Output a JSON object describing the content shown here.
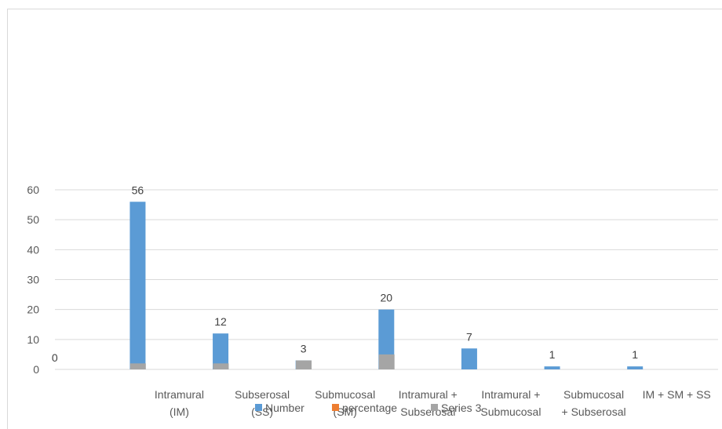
{
  "chart_data": {
    "type": "bar",
    "categories": [
      "",
      "Intramural (IM)",
      "Subserosal (SS)",
      "Submucosal (SM)",
      "Intramural + Subserosal",
      "Intramural + Submucosal",
      "Submucosal + Subserosal",
      "IM + SM + SS"
    ],
    "category_lines": [
      [],
      [
        "Intramural",
        "(IM)"
      ],
      [
        "Subserosal",
        "(SS)"
      ],
      [
        "Submucosal",
        "(SM)"
      ],
      [
        "Intramural +",
        "Subserosal"
      ],
      [
        "Intramural +",
        "Submucosal"
      ],
      [
        "Submucosal",
        "+ Subserosal"
      ],
      [
        "IM + SM + SS"
      ]
    ],
    "series": [
      {
        "name": "Number",
        "values": [
          0,
          56,
          12,
          3,
          20,
          7,
          1,
          1
        ],
        "color": "#5b9bd5",
        "show_labels": true
      },
      {
        "name": "percentage",
        "values": [
          null,
          null,
          null,
          null,
          null,
          null,
          null,
          null
        ],
        "color": "#ed7d31",
        "show_labels": false
      },
      {
        "name": "Series 3",
        "values": [
          2,
          2,
          3,
          5,
          null,
          null,
          null,
          null
        ],
        "color": "#a5a5a5",
        "show_labels": false
      }
    ],
    "yticks": [
      0,
      10,
      20,
      30,
      40,
      50,
      60
    ],
    "ylim": [
      0,
      60
    ],
    "grid": true,
    "legend": "bottom",
    "title": "",
    "xlabel": "",
    "ylabel": ""
  }
}
